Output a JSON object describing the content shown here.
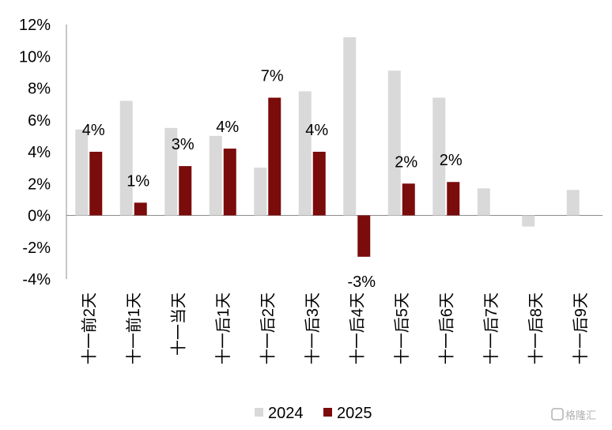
{
  "chart_data": {
    "type": "bar",
    "categories": [
      "十一前2天",
      "十一前1天",
      "十一当天",
      "十一后1天",
      "十一后2天",
      "十一后3天",
      "十一后4天",
      "十一后5天",
      "十一后6天",
      "十一后7天",
      "十一后8天",
      "十一后9天"
    ],
    "series": [
      {
        "name": "2024",
        "color": "#d9d9d9",
        "values": [
          5.4,
          7.2,
          5.5,
          5.0,
          3.0,
          7.8,
          11.2,
          9.1,
          7.4,
          1.7,
          -0.7,
          1.6
        ]
      },
      {
        "name": "2025",
        "color": "#7b0c0c",
        "values": [
          4.0,
          0.8,
          3.1,
          4.2,
          7.4,
          4.0,
          -2.6,
          2.0,
          2.1,
          null,
          null,
          null
        ]
      }
    ],
    "data_labels": [
      "4%",
      "1%",
      "3%",
      "4%",
      "7%",
      "4%",
      "-3%",
      "2%",
      "2%",
      null,
      null,
      null
    ],
    "ylim": [
      -4,
      12
    ],
    "yticks": [
      -4,
      -2,
      0,
      2,
      4,
      6,
      8,
      10,
      12
    ],
    "ytick_labels": [
      "-4%",
      "-2%",
      "0%",
      "2%",
      "4%",
      "6%",
      "8%",
      "10%",
      "12%"
    ],
    "legend_position": "bottom-center",
    "grid": false,
    "watermark": "格隆汇"
  }
}
